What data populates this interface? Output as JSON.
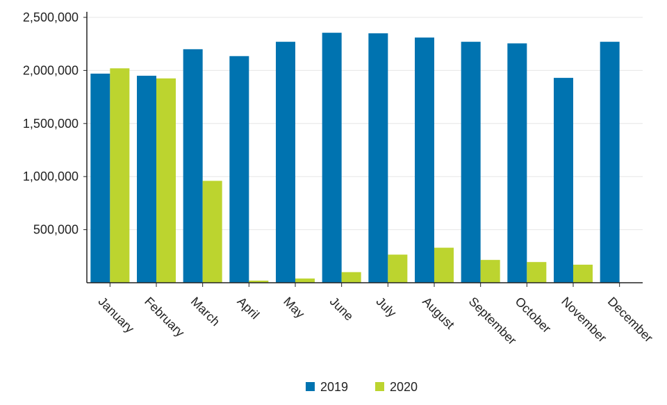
{
  "chart_data": {
    "type": "bar",
    "title": "",
    "xlabel": "",
    "ylabel": "",
    "categories": [
      "January",
      "February",
      "March",
      "April",
      "May",
      "June",
      "July",
      "August",
      "September",
      "October",
      "November",
      "December"
    ],
    "series": [
      {
        "name": "2019",
        "color": "#0073b0",
        "values": [
          1970000,
          1950000,
          2200000,
          2135000,
          2270000,
          2355000,
          2350000,
          2310000,
          2270000,
          2255000,
          1930000,
          2270000
        ]
      },
      {
        "name": "2020",
        "color": "#bcd42f",
        "values": [
          2020000,
          1925000,
          960000,
          20000,
          40000,
          100000,
          265000,
          330000,
          215000,
          195000,
          170000,
          null
        ]
      }
    ],
    "ylim": [
      0,
      2500000
    ],
    "yticks": [
      500000,
      1000000,
      1500000,
      2000000,
      2500000
    ],
    "ytick_labels": [
      "500,000",
      "1,000,000",
      "1,500,000",
      "2,000,000",
      "2,500,000"
    ],
    "grid": true,
    "legend_position": "bottom-center"
  }
}
